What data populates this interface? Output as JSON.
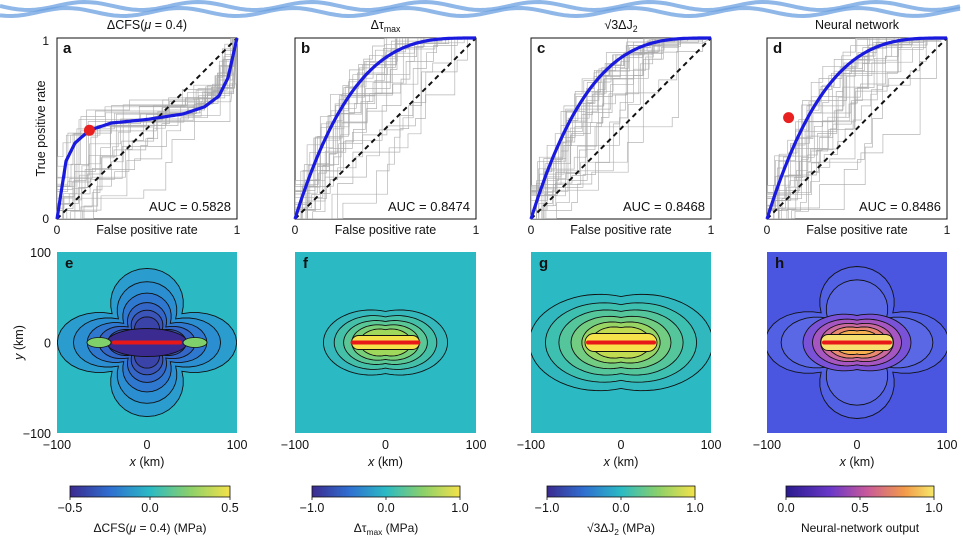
{
  "roc_panels": [
    {
      "letter": "a",
      "title": "ΔCFS(",
      "title_greek": "μ",
      "title_suffix": " = 0.4)",
      "auc_text": "AUC = 0.5828",
      "auc": 0.5828,
      "curve_shape": "sigmoid",
      "operating_point": [
        0.18,
        0.49
      ]
    },
    {
      "letter": "b",
      "title": "Δτ",
      "title_sub": "max",
      "auc_text": "AUC = 0.8474",
      "auc": 0.8474,
      "curve_shape": "concave"
    },
    {
      "letter": "c",
      "title": "√3ΔJ",
      "title_sub": "2",
      "auc_text": "AUC = 0.8468",
      "auc": 0.8468,
      "curve_shape": "concave"
    },
    {
      "letter": "d",
      "title": "Neural network",
      "auc_text": "AUC = 0.8486",
      "auc": 0.8486,
      "curve_shape": "concave",
      "operating_point": [
        0.12,
        0.56
      ]
    }
  ],
  "roc_axes": {
    "xlabel": "False positive rate",
    "ylabel": "True positive rate",
    "x_ticks": [
      "0",
      "1"
    ],
    "y_ticks": [
      "0",
      "1"
    ]
  },
  "map_panels": [
    {
      "letter": "e",
      "background": "#2bbac4",
      "colormap": "diverging-viridis",
      "colorbar_ticks": [
        "-0.5",
        "0.0",
        "0.5"
      ],
      "colorbar_range": [
        -0.5,
        0.5
      ],
      "colorbar_label": "ΔCFS(",
      "colorbar_label_greek": "μ",
      "colorbar_label_suffix": " = 0.4) (MPa)"
    },
    {
      "letter": "f",
      "background": "#2bbac4",
      "colormap": "viridis",
      "colorbar_ticks": [
        "-1.0",
        "0.0",
        "1.0"
      ],
      "colorbar_range": [
        -1.0,
        1.0
      ],
      "colorbar_label": "Δτ",
      "colorbar_label_sub": "max",
      "colorbar_label_suffix": " (MPa)"
    },
    {
      "letter": "g",
      "background": "#2bbac4",
      "colormap": "viridis",
      "colorbar_ticks": [
        "-1.0",
        "0.0",
        "1.0"
      ],
      "colorbar_range": [
        -1.0,
        1.0
      ],
      "colorbar_label": "√3ΔJ",
      "colorbar_label_sub": "2",
      "colorbar_label_suffix": " (MPa)"
    },
    {
      "letter": "h",
      "background": "#4a55e0",
      "colormap": "plasma",
      "colorbar_ticks": [
        "0.0",
        "0.5",
        "1.0"
      ],
      "colorbar_range": [
        0.0,
        1.0
      ],
      "colorbar_label": "Neural-network output"
    }
  ],
  "map_axes": {
    "xlabel": "x (km)",
    "ylabel": "y (km)",
    "x_ticks": [
      "−100",
      "0",
      "100"
    ],
    "y_ticks": [
      "100",
      "0",
      "−100"
    ]
  },
  "chart_data": [
    {
      "type": "line",
      "title": "ΔCFS(μ = 0.4)",
      "xlabel": "False positive rate",
      "ylabel": "True positive rate",
      "xlim": [
        0,
        1
      ],
      "ylim": [
        0,
        1
      ],
      "auc": 0.5828,
      "series": [
        {
          "x": [
            0,
            0.05,
            0.1,
            0.18,
            0.3,
            0.5,
            0.7,
            0.82,
            0.9,
            0.95,
            1
          ],
          "values": [
            0,
            0.32,
            0.42,
            0.49,
            0.53,
            0.55,
            0.58,
            0.62,
            0.68,
            0.78,
            1
          ]
        }
      ]
    },
    {
      "type": "line",
      "title": "Δτmax",
      "xlabel": "False positive rate",
      "ylabel": "True positive rate",
      "xlim": [
        0,
        1
      ],
      "ylim": [
        0,
        1
      ],
      "auc": 0.8474
    },
    {
      "type": "line",
      "title": "√3ΔJ2",
      "xlabel": "False positive rate",
      "ylabel": "True positive rate",
      "xlim": [
        0,
        1
      ],
      "ylim": [
        0,
        1
      ],
      "auc": 0.8468
    },
    {
      "type": "line",
      "title": "Neural network",
      "xlabel": "False positive rate",
      "ylabel": "True positive rate",
      "xlim": [
        0,
        1
      ],
      "ylim": [
        0,
        1
      ],
      "auc": 0.8486
    },
    {
      "type": "heatmap",
      "xlabel": "x (km)",
      "ylabel": "y (km)",
      "xlim": [
        -100,
        100
      ],
      "ylim": [
        -100,
        100
      ],
      "colorbar_range": [
        -0.5,
        0.5
      ]
    },
    {
      "type": "heatmap",
      "xlabel": "x (km)",
      "xlim": [
        -100,
        100
      ],
      "ylim": [
        -100,
        100
      ],
      "colorbar_range": [
        -1.0,
        1.0
      ]
    },
    {
      "type": "heatmap",
      "xlabel": "x (km)",
      "xlim": [
        -100,
        100
      ],
      "ylim": [
        -100,
        100
      ],
      "colorbar_range": [
        -1.0,
        1.0
      ]
    },
    {
      "type": "heatmap",
      "xlabel": "x (km)",
      "xlim": [
        -100,
        100
      ],
      "ylim": [
        -100,
        100
      ],
      "colorbar_range": [
        0.0,
        1.0
      ]
    }
  ],
  "colors": {
    "mean_curve": "#1a1adf",
    "sample_curves": "#a8a8a8",
    "diagonal": "#111111",
    "operating_point": "#e82020",
    "fault": "#e81818"
  }
}
